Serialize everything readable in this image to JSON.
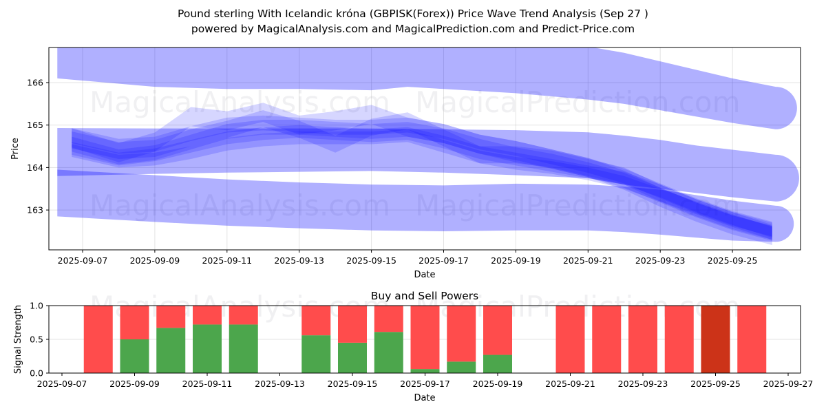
{
  "header": {
    "title_line1": "Pound sterling With Icelandic króna (GBPISK(Forex)) Price Wave Trend Analysis (Sep 27 )",
    "title_line2": "powered by MagicalAnalysis.com and MagicalPrediction.com and Predict-Price.com"
  },
  "watermarks": [
    "MagicalAnalysis.com",
    "MagicalPrediction.com"
  ],
  "chart_data": [
    {
      "type": "area",
      "title": "",
      "xlabel": "Date",
      "ylabel": "Price",
      "x_ticks": [
        "2025-09-07",
        "2025-09-09",
        "2025-09-11",
        "2025-09-13",
        "2025-09-15",
        "2025-09-17",
        "2025-09-19",
        "2025-09-21",
        "2025-09-23",
        "2025-09-25"
      ],
      "y_ticks": [
        "163",
        "164",
        "165",
        "166"
      ],
      "xlim": [
        "2025-09-05.1",
        "2025-09-27.3"
      ],
      "ylim": [
        162.1,
        166.8
      ],
      "grid": true,
      "band_color": "#0000ff",
      "bands": [
        {
          "name": "upper-band",
          "x": [
            6.3,
            9,
            11,
            13,
            15,
            16,
            17,
            19,
            21,
            22,
            23,
            24,
            25,
            26.2
          ],
          "upper": [
            166.85,
            166.85,
            166.85,
            166.85,
            166.85,
            166.85,
            166.85,
            166.85,
            166.85,
            166.7,
            166.5,
            166.3,
            166.1,
            165.9
          ],
          "lower": [
            166.1,
            165.9,
            165.85,
            165.85,
            165.82,
            165.9,
            165.85,
            165.75,
            165.6,
            165.5,
            165.35,
            165.2,
            165.05,
            164.9
          ]
        },
        {
          "name": "middle-band",
          "x": [
            6.3,
            9,
            11,
            13,
            15,
            17,
            19,
            21,
            22,
            23,
            24,
            25,
            26.2
          ],
          "upper": [
            164.93,
            164.92,
            164.92,
            164.92,
            164.92,
            164.9,
            164.88,
            164.83,
            164.75,
            164.65,
            164.52,
            164.42,
            164.3
          ],
          "lower": [
            163.8,
            163.85,
            163.88,
            163.9,
            163.92,
            163.88,
            163.82,
            163.75,
            163.6,
            163.5,
            163.4,
            163.3,
            163.2
          ]
        },
        {
          "name": "lower-band",
          "x": [
            6.3,
            9,
            11,
            13,
            15,
            17,
            19,
            21,
            22,
            23,
            24,
            25,
            26.2
          ],
          "upper": [
            163.95,
            163.82,
            163.72,
            163.65,
            163.6,
            163.58,
            163.62,
            163.6,
            163.55,
            163.48,
            163.35,
            163.22,
            163.1
          ],
          "lower": [
            162.85,
            162.72,
            162.63,
            162.57,
            162.52,
            162.5,
            162.52,
            162.52,
            162.48,
            162.42,
            162.35,
            162.28,
            162.25
          ]
        }
      ],
      "waves": [
        {
          "x": [
            6.7,
            8,
            9,
            10,
            11,
            12,
            13,
            14,
            15,
            16,
            17,
            18,
            19,
            20,
            21,
            22,
            23,
            24,
            25,
            26.1
          ],
          "y": [
            164.55,
            164.25,
            164.35,
            164.6,
            164.85,
            164.95,
            164.95,
            164.9,
            164.85,
            164.9,
            164.75,
            164.5,
            164.3,
            164.15,
            163.95,
            163.7,
            163.35,
            163.0,
            162.7,
            162.45
          ],
          "width": 0.35
        },
        {
          "x": [
            6.7,
            8,
            9,
            10,
            11,
            12,
            13,
            14,
            15,
            16,
            17,
            18,
            19,
            20,
            21,
            22,
            23,
            24,
            25,
            26.1
          ],
          "y": [
            164.45,
            164.2,
            164.3,
            164.5,
            164.7,
            164.8,
            164.85,
            164.8,
            164.75,
            164.8,
            164.6,
            164.35,
            164.2,
            164.05,
            163.9,
            163.75,
            163.45,
            163.1,
            162.8,
            162.5
          ],
          "width": 0.3
        },
        {
          "x": [
            6.7,
            8,
            9,
            10,
            11,
            12,
            13,
            14,
            15,
            16,
            17,
            18,
            19,
            20,
            21,
            22,
            23,
            24,
            25,
            26.1
          ],
          "y": [
            164.65,
            164.4,
            164.45,
            164.7,
            164.9,
            165.15,
            164.9,
            164.55,
            164.95,
            165.1,
            164.7,
            164.3,
            164.3,
            164.2,
            164.0,
            163.8,
            163.4,
            163.05,
            162.75,
            162.5
          ],
          "width": 0.4
        },
        {
          "x": [
            6.7,
            8,
            9,
            10,
            11,
            12,
            13,
            14,
            15,
            16,
            17,
            18,
            19,
            20,
            21,
            22,
            23,
            24,
            25,
            26.1
          ],
          "y": [
            164.7,
            164.35,
            164.6,
            165.2,
            165.1,
            165.3,
            165.0,
            165.1,
            165.25,
            164.95,
            164.8,
            164.55,
            164.4,
            164.2,
            164.0,
            163.7,
            163.3,
            162.95,
            162.65,
            162.4
          ],
          "width": 0.45
        },
        {
          "x": [
            6.7,
            8,
            9,
            10,
            11,
            12,
            13,
            14,
            15,
            16,
            17,
            18,
            19,
            20,
            21,
            22,
            23,
            24,
            25,
            26.1
          ],
          "y": [
            164.4,
            164.15,
            164.2,
            164.35,
            164.55,
            164.65,
            164.7,
            164.7,
            164.7,
            164.75,
            164.5,
            164.25,
            164.1,
            164.0,
            163.85,
            163.65,
            163.35,
            163.05,
            162.75,
            162.45
          ],
          "width": 0.3
        },
        {
          "x": [
            6.7,
            8,
            9,
            10,
            11,
            12,
            13,
            14,
            15,
            16,
            17,
            18,
            19,
            20,
            21,
            22,
            23,
            24,
            25,
            26.1
          ],
          "y": [
            164.75,
            164.5,
            164.55,
            164.8,
            165.0,
            165.05,
            165.0,
            164.95,
            164.95,
            165.0,
            164.85,
            164.6,
            164.45,
            164.25,
            164.05,
            163.8,
            163.45,
            163.1,
            162.8,
            162.55
          ],
          "width": 0.35
        }
      ]
    },
    {
      "type": "bar",
      "title": "Buy and Sell Powers",
      "xlabel": "Date",
      "ylabel": "Signal Strength",
      "x_ticks": [
        "2025-09-07",
        "2025-09-09",
        "2025-09-11",
        "2025-09-13",
        "2025-09-15",
        "2025-09-17",
        "2025-09-19",
        "2025-09-21",
        "2025-09-23",
        "2025-09-25",
        "2025-09-27"
      ],
      "y_ticks": [
        "0.0",
        "0.5",
        "1.0"
      ],
      "ylim": [
        0,
        1
      ],
      "grid": true,
      "categories": [
        "2025-09-08",
        "2025-09-09",
        "2025-09-10",
        "2025-09-11",
        "2025-09-12",
        "2025-09-14",
        "2025-09-15",
        "2025-09-16",
        "2025-09-17",
        "2025-09-18",
        "2025-09-19",
        "2025-09-21",
        "2025-09-22",
        "2025-09-23",
        "2025-09-24",
        "2025-09-25",
        "2025-09-26"
      ],
      "series": [
        {
          "name": "Buy",
          "color": "#4ca64c",
          "values": [
            0.0,
            0.5,
            0.67,
            0.72,
            0.72,
            0.56,
            0.45,
            0.61,
            0.06,
            0.17,
            0.27,
            0.0,
            0.0,
            0.0,
            0.0,
            0.0,
            0.0
          ]
        },
        {
          "name": "Sell",
          "color": "#ff4c4c",
          "values": [
            1.0,
            0.5,
            0.33,
            0.28,
            0.28,
            0.44,
            0.55,
            0.39,
            0.94,
            0.83,
            0.73,
            1.0,
            1.0,
            1.0,
            1.0,
            1.0,
            1.0
          ]
        }
      ],
      "highlight": {
        "category": "2025-09-25",
        "color": "#cc3318"
      }
    }
  ]
}
